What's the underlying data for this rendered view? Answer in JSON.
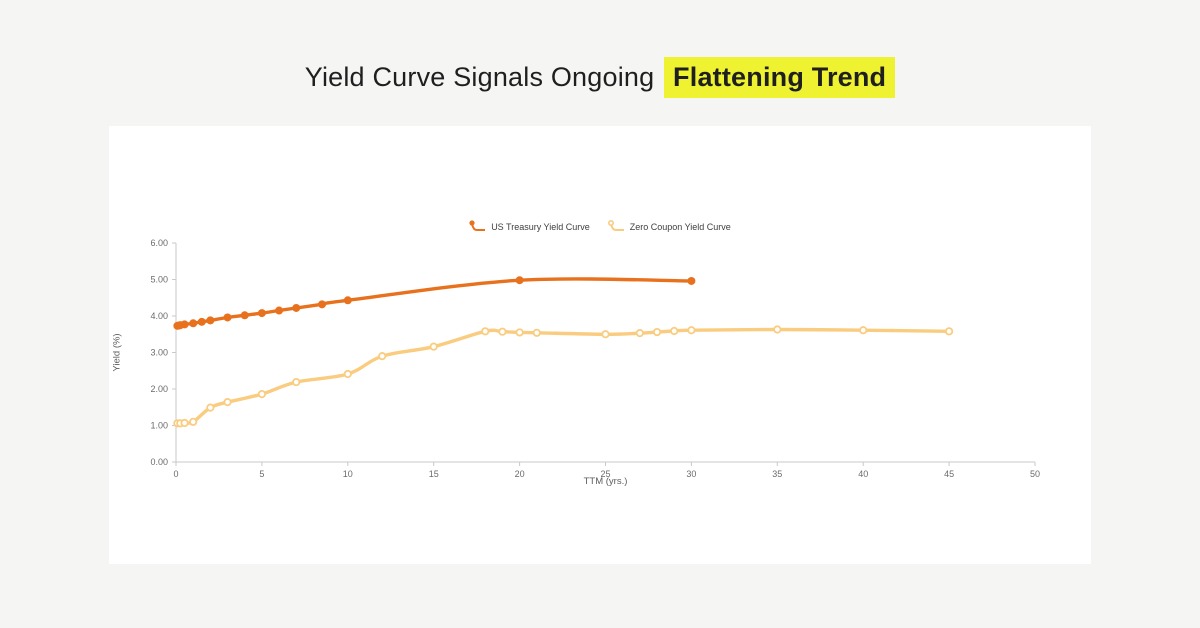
{
  "page": {
    "background_color": "#f5f5f4",
    "card_color": "#ffffff",
    "title": {
      "prefix": "Yield Curve Signals Ongoing",
      "highlight": "Flattening Trend",
      "highlight_color": "#eff231",
      "text_color": "#1f1f1f"
    }
  },
  "chart_data": {
    "type": "line",
    "title": "",
    "xlabel": "TTM (yrs.)",
    "ylabel": "Yield (%)",
    "xlim": [
      0,
      50
    ],
    "ylim": [
      0,
      6
    ],
    "x_ticks": [
      0,
      5,
      10,
      15,
      20,
      25,
      30,
      35,
      40,
      45,
      50
    ],
    "y_ticks": [
      "0.00",
      "1.00",
      "2.00",
      "3.00",
      "4.00",
      "5.00",
      "6.00"
    ],
    "grid": false,
    "legend_position": "top-center",
    "axis_color": "#c9c9c9",
    "series": [
      {
        "name": "US Treasury Yield Curve",
        "color": "#e8711e",
        "marker": "filled-circle",
        "points": [
          [
            0.08,
            3.73
          ],
          [
            0.17,
            3.74
          ],
          [
            0.25,
            3.75
          ],
          [
            0.5,
            3.77
          ],
          [
            1,
            3.8
          ],
          [
            1.5,
            3.84
          ],
          [
            2,
            3.88
          ],
          [
            3,
            3.96
          ],
          [
            4,
            4.02
          ],
          [
            5,
            4.08
          ],
          [
            6,
            4.15
          ],
          [
            7,
            4.22
          ],
          [
            8.5,
            4.32
          ],
          [
            10,
            4.43
          ],
          [
            20,
            4.98
          ],
          [
            30,
            4.96
          ]
        ]
      },
      {
        "name": "Zero Coupon Yield Curve",
        "color": "#facc80",
        "marker": "open-circle",
        "points": [
          [
            0.08,
            1.06
          ],
          [
            0.25,
            1.06
          ],
          [
            0.5,
            1.07
          ],
          [
            1,
            1.1
          ],
          [
            2,
            1.49
          ],
          [
            3,
            1.64
          ],
          [
            5,
            1.86
          ],
          [
            7,
            2.19
          ],
          [
            10,
            2.41
          ],
          [
            12,
            2.9
          ],
          [
            15,
            3.16
          ],
          [
            18,
            3.58
          ],
          [
            19,
            3.57
          ],
          [
            20,
            3.55
          ],
          [
            21,
            3.54
          ],
          [
            25,
            3.5
          ],
          [
            27,
            3.53
          ],
          [
            28,
            3.56
          ],
          [
            29,
            3.59
          ],
          [
            30,
            3.61
          ],
          [
            35,
            3.63
          ],
          [
            40,
            3.61
          ],
          [
            45,
            3.58
          ]
        ]
      }
    ]
  }
}
